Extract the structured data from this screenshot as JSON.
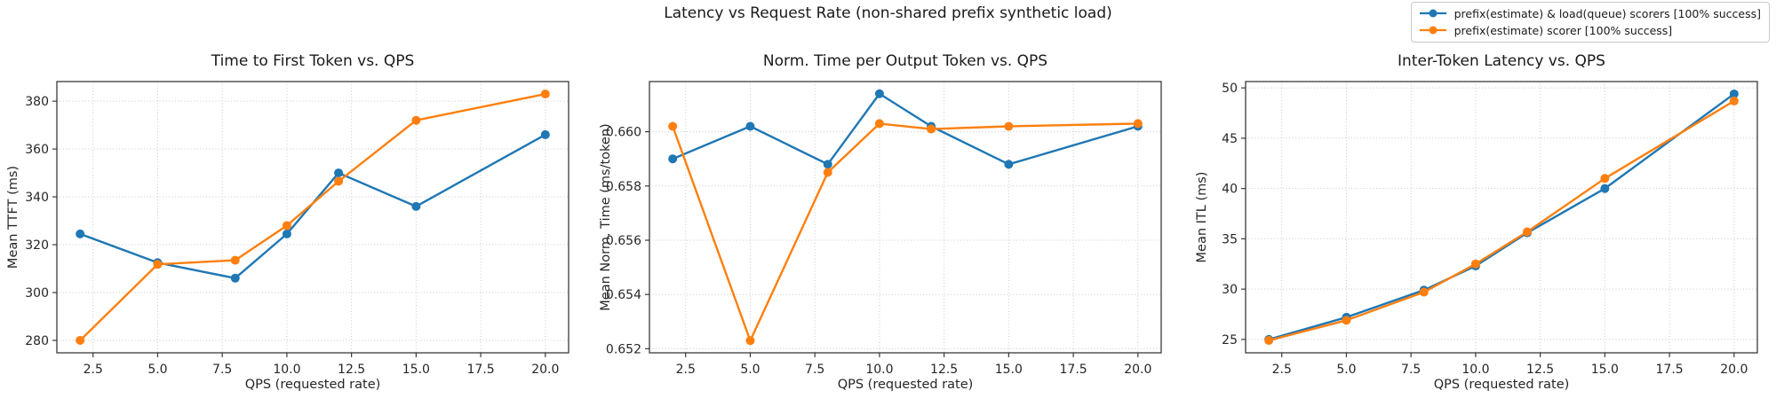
{
  "figure": {
    "title": "Latency vs Request Rate (non-shared prefix synthetic load)"
  },
  "legend": {
    "items": [
      {
        "label": "prefix(estimate) & load(queue) scorers [100% success]",
        "color": "#1f77b4"
      },
      {
        "label": "prefix(estimate) scorer [100% success]",
        "color": "#ff7f0e"
      }
    ]
  },
  "colors": {
    "blue": "#1f77b4",
    "orange": "#ff7f0e",
    "grid": "#c9c9c9",
    "spine": "#3a3a3a",
    "text": "#262626"
  },
  "chart_data": [
    {
      "type": "line",
      "title": "Time to First Token vs. QPS",
      "xlabel": "QPS (requested rate)",
      "ylabel": "Mean TTFT (ms)",
      "grid": true,
      "legend_position": "figure-top-right",
      "x": [
        2,
        5,
        8,
        10,
        12,
        15,
        20
      ],
      "series": [
        {
          "name": "prefix(estimate) & load(queue) scorers [100% success]",
          "color": "#1f77b4",
          "values": [
            324.5,
            312.5,
            306,
            324.5,
            350,
            336,
            366
          ]
        },
        {
          "name": "prefix(estimate) scorer [100% success]",
          "color": "#ff7f0e",
          "values": [
            280,
            311.8,
            313.5,
            328,
            346.5,
            372,
            383
          ]
        }
      ],
      "xlim": [
        1.1,
        20.9
      ],
      "ylim": [
        274.8,
        388.2
      ],
      "xticks": [
        2.5,
        5.0,
        7.5,
        10.0,
        12.5,
        15.0,
        17.5,
        20.0
      ],
      "xtick_labels": [
        "2.5",
        "5.0",
        "7.5",
        "10.0",
        "12.5",
        "15.0",
        "17.5",
        "20.0"
      ],
      "yticks": [
        280,
        300,
        320,
        340,
        360,
        380
      ],
      "ytick_labels": [
        "280",
        "300",
        "320",
        "340",
        "360",
        "380"
      ]
    },
    {
      "type": "line",
      "title": "Norm. Time per Output Token vs. QPS",
      "xlabel": "QPS (requested rate)",
      "ylabel": "Mean Norm. Time (ms/token)",
      "grid": true,
      "x": [
        2,
        5,
        8,
        10,
        12,
        15,
        20
      ],
      "series": [
        {
          "name": "prefix(estimate) & load(queue) scorers [100% success]",
          "color": "#1f77b4",
          "values": [
            0.659,
            0.6602,
            0.6588,
            0.6614,
            0.6602,
            0.6588,
            0.6602
          ]
        },
        {
          "name": "prefix(estimate) scorer [100% success]",
          "color": "#ff7f0e",
          "values": [
            0.6602,
            0.6523,
            0.6585,
            0.6603,
            0.6601,
            0.6602,
            0.6603
          ]
        }
      ],
      "xlim": [
        1.1,
        20.9
      ],
      "ylim": [
        0.65185,
        0.66185
      ],
      "xticks": [
        2.5,
        5.0,
        7.5,
        10.0,
        12.5,
        15.0,
        17.5,
        20.0
      ],
      "xtick_labels": [
        "2.5",
        "5.0",
        "7.5",
        "10.0",
        "12.5",
        "15.0",
        "17.5",
        "20.0"
      ],
      "yticks": [
        0.652,
        0.654,
        0.656,
        0.658,
        0.66
      ],
      "ytick_labels": [
        "0.652",
        "0.654",
        "0.656",
        "0.658",
        "0.660"
      ]
    },
    {
      "type": "line",
      "title": "Inter-Token Latency vs. QPS",
      "xlabel": "QPS (requested rate)",
      "ylabel": "Mean ITL (ms)",
      "grid": true,
      "x": [
        2,
        5,
        8,
        10,
        12,
        15,
        20
      ],
      "series": [
        {
          "name": "prefix(estimate) & load(queue) scorers [100% success]",
          "color": "#1f77b4",
          "values": [
            25.0,
            27.2,
            29.9,
            32.3,
            35.6,
            40.0,
            49.4
          ]
        },
        {
          "name": "prefix(estimate) scorer [100% success]",
          "color": "#ff7f0e",
          "values": [
            24.9,
            26.9,
            29.7,
            32.5,
            35.7,
            41.0,
            48.7
          ]
        }
      ],
      "xlim": [
        1.1,
        20.9
      ],
      "ylim": [
        23.67,
        50.63
      ],
      "xticks": [
        2.5,
        5.0,
        7.5,
        10.0,
        12.5,
        15.0,
        17.5,
        20.0
      ],
      "xtick_labels": [
        "2.5",
        "5.0",
        "7.5",
        "10.0",
        "12.5",
        "15.0",
        "17.5",
        "20.0"
      ],
      "yticks": [
        25,
        30,
        35,
        40,
        45,
        50
      ],
      "ytick_labels": [
        "25",
        "30",
        "35",
        "40",
        "45",
        "50"
      ]
    }
  ]
}
